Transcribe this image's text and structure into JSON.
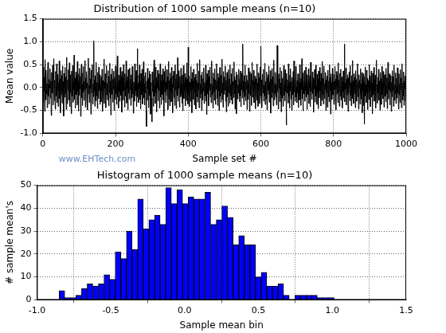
{
  "chart_data": [
    {
      "type": "line",
      "title": "Distribution of 1000 sample means (n=10)",
      "x_label": "Sample set #",
      "y_label": "Mean value",
      "annotation": "www.EHTech.com",
      "color": "#000000",
      "grid": true,
      "xlim": [
        0,
        1000
      ],
      "xticks": [
        0,
        200,
        400,
        600,
        800,
        1000
      ],
      "ylim": [
        -1,
        1.5
      ],
      "yticks": [
        {
          "value": -1,
          "label": "-1.0"
        },
        {
          "value": -0.5,
          "label": "-0.5"
        },
        {
          "value": 0,
          "label": "0.0"
        },
        {
          "value": 0.5,
          "label": "0.5"
        },
        {
          "value": 1,
          "label": "1.0"
        },
        {
          "value": 1.5,
          "label": "1.5"
        }
      ],
      "values": [
        0.12,
        -0.31,
        0.45,
        -0.08,
        0.22,
        -0.52,
        0.61,
        0.03,
        -0.27,
        0.38,
        -0.14,
        0.09,
        -0.44,
        0.27,
        0.55,
        -0.19,
        0.06,
        -0.36,
        0.18,
        -0.02,
        0.41,
        -0.23,
        0.14,
        -0.61,
        0.33,
        0.07,
        -0.12,
        0.49,
        -0.38,
        0.21,
        0.63,
        -0.05,
        -0.29,
        0.16,
        -0.47,
        0.35,
        0.02,
        -0.18,
        0.52,
        -0.33,
        0.08,
        0.29,
        -0.41,
        0.11,
        -0.07,
        0.58,
        -0.24,
        0.19,
        -0.55,
        0.04,
        0.37,
        -0.16,
        0.26,
        -0.34,
        0.47,
        -0.09,
        0.13,
        -0.62,
        0.31,
        0.05,
        -0.21,
        0.44,
        -0.13,
        0.23,
        -0.48,
        0.66,
        0.01,
        -0.35,
        0.17,
        -0.06,
        0.39,
        -0.27,
        0.09,
        0.54,
        -0.42,
        0.15,
        -0.11,
        0.28,
        -0.57,
        0.36,
        0.03,
        -0.19,
        0.48,
        -0.32,
        0.12,
        -0.04,
        0.71,
        -0.26,
        0.2,
        -0.45,
        0.06,
        0.34,
        -0.15,
        0.25,
        -0.38,
        0.57,
        -0.08,
        0.14,
        -0.51,
        0.3,
        -0.17,
        0.42,
        -0.03,
        0.24,
        -0.63,
        0.18,
        0.51,
        -0.22,
        0.07,
        -0.39,
        0.32,
        -0.1,
        0.46,
        -0.28,
        0.13,
        -0.05,
        0.59,
        -0.43,
        0.21,
        0.0,
        0.35,
        -0.25,
        0.1,
        -0.49,
        0.27,
        0.64,
        -0.14,
        0.05,
        -0.33,
        0.43,
        -0.02,
        0.19,
        -0.58,
        0.38,
        -0.12,
        0.22,
        0.5,
        -0.36,
        0.08,
        -0.2,
        1.02,
        -0.09,
        0.16,
        -0.41,
        0.26,
        0.03,
        -0.29,
        0.55,
        -0.18,
        0.11,
        -0.46,
        0.33,
        0.07,
        -0.24,
        0.45,
        -0.06,
        0.19,
        -0.37,
        0.28,
        0.02,
        -0.31,
        0.23,
        -0.07,
        0.4,
        -0.52,
        0.15,
        0.06,
        -0.2,
        0.62,
        -0.35,
        0.12,
        -0.01,
        0.3,
        -0.44,
        0.2,
        0.48,
        -0.16,
        0.09,
        -0.27,
        0.37,
        0.04,
        -0.4,
        0.25,
        -0.11,
        0.53,
        -0.23,
        0.14,
        -0.6,
        0.29,
        0.08,
        -0.15,
        0.41,
        -0.32,
        0.18,
        -0.04,
        0.36,
        -0.5,
        0.22,
        0.1,
        -0.26,
        0.47,
        -0.13,
        0.05,
        -0.37,
        0.32,
        0.69,
        -0.21,
        0.13,
        -0.45,
        0.27,
        -0.08,
        0.17,
        -0.3,
        0.44,
        0.01,
        -0.17,
        0.26,
        -0.54,
        0.35,
        -0.1,
        0.2,
        -0.28,
        0.5,
        -0.06,
        0.11,
        -0.43,
        0.3,
        0.04,
        -0.19,
        0.58,
        -0.34,
        0.15,
        -0.02,
        0.24,
        -0.49,
        0.39,
        -0.12,
        0.07,
        -0.25,
        0.43,
        -0.05,
        0.18,
        -0.39,
        0.28,
        0.09,
        -0.22,
        0.46,
        -0.14,
        0.34,
        -0.56,
        0.12,
        0.02,
        -0.3,
        0.52,
        -0.18,
        0.21,
        -0.07,
        0.37,
        -0.42,
        0.16,
        0.85,
        -0.2,
        0.1,
        -0.33,
        0.27,
        -0.04,
        0.49,
        -0.26,
        0.13,
        -0.47,
        0.31,
        0.06,
        -0.16,
        0.4,
        -0.36,
        0.19,
        -0.09,
        0.56,
        -0.23,
        0.08,
        -0.38,
        0.25,
        -0.12,
        0.33,
        -0.5,
        -0.85,
        0.14,
        -0.28,
        0.42,
        -0.03,
        0.2,
        -0.44,
        0.07,
        0.36,
        -0.17,
        0.29,
        -0.58,
        0.11,
        0.03,
        -0.24,
        -0.75,
        0.34,
        -0.08,
        0.16,
        -0.41,
        0.26,
        0.6,
        -0.19,
        0.05,
        -0.35,
        0.45,
        -0.11,
        0.22,
        -0.53,
        0.13,
        -0.01,
        0.38,
        -0.29,
        0.18,
        -0.06,
        0.3,
        -0.45,
        0.09,
        0.52,
        -0.21,
        0.14,
        -0.37,
        0.28,
        0.0,
        -0.15,
        0.41,
        -0.27,
        0.17,
        -0.62,
        0.35,
        0.06,
        -0.1,
        0.47,
        -0.33,
        0.12,
        -0.18,
        0.39,
        -0.04,
        0.23,
        -0.48,
        0.1,
        0.57,
        -0.25,
        0.15,
        -0.4,
        0.32,
        -0.09,
        0.2,
        -0.31,
        0.44,
        -0.13,
        0.07,
        -0.55,
        0.26,
        0.01,
        0.36,
        -0.22,
        0.13,
        -0.39,
        0.5,
        -0.06,
        0.19,
        -0.46,
        0.29,
        0.04,
        -0.17,
        0.65,
        -0.3,
        0.11,
        -0.02,
        0.37,
        -0.43,
        0.24,
        0.08,
        -0.2,
        0.42,
        -0.14,
        0.06,
        -0.34,
        0.27,
        -0.51,
        0.16,
        0.48,
        -0.24,
        0.1,
        -0.07,
        0.31,
        -0.4,
        0.21,
        0.03,
        -0.28,
        0.54,
        -0.12,
        0.18,
        -0.36,
        0.88,
        -0.16,
        0.25,
        -0.42,
        0.12,
        0.04,
        -0.3,
        0.46,
        -0.09,
        0.19,
        -0.55,
        0.33,
        -0.03,
        0.14,
        -0.26,
        0.4,
        0.07,
        -0.38,
        0.22,
        -0.11,
        0.29,
        -0.47,
        0.15,
        0.02,
        -0.2,
        0.53,
        -0.32,
        0.1,
        -0.05,
        0.36,
        -0.44,
        0.18,
        0.61,
        -0.23,
        0.08,
        -0.13,
        0.27,
        -0.5,
        0.34,
        -0.01,
        -0.27,
        0.2,
        -0.08,
        0.43,
        -0.35,
        0.11,
        0.05,
        -0.18,
        0.49,
        -0.29,
        0.16,
        -0.59,
        0.3,
        0.03,
        -0.14,
        0.38,
        -0.4,
        0.24,
        -0.06,
        0.13,
        0.45,
        -0.21,
        0.09,
        -0.33,
        0.26,
        0.58,
        -0.16,
        0.06,
        -0.45,
        0.32,
        -0.1,
        0.2,
        -0.28,
        0.41,
        0.0,
        -0.37,
        0.17,
        -0.04,
        0.52,
        -0.24,
        0.14,
        -0.39,
        0.31,
        -0.07,
        0.22,
        -0.5,
        0.12,
        0.44,
        -0.19,
        0.05,
        -0.32,
        0.27,
        -0.12,
        0.62,
        -0.26,
        0.1,
        -0.43,
        0.35,
        0.01,
        -0.15,
        0.23,
        -0.06,
        0.47,
        -0.3,
        0.15,
        -0.53,
        0.08,
        0.33,
        -0.2,
        0.02,
        -0.41,
        0.39,
        -0.11,
        0.19,
        -0.34,
        0.5,
        -0.17,
        0.07,
        -0.27,
        0.3,
        -0.09,
        0.42,
        -0.36,
        0.13,
        0.04,
        -0.22,
        0.56,
        -0.14,
        0.24,
        -0.47,
        0.17,
        -0.03,
        0.34,
        -0.57,
        0.11,
        0.28,
        -0.25,
        0.06,
        -0.12,
        0.4,
        0.18,
        -0.31,
        0.09,
        -0.18,
        0.36,
        -0.42,
        0.21,
        -0.05,
        0.31,
        -0.23,
        0.95,
        -0.1,
        0.14,
        -0.38,
        0.26,
        0.03,
        -0.2,
        0.49,
        -0.29,
        0.12,
        -0.04,
        0.27,
        -0.48,
        0.16,
        0.07,
        -0.26,
        0.43,
        -0.13,
        0.2,
        -0.52,
        0.35,
        0.01,
        -0.17,
        0.3,
        -0.39,
        0.09,
        0.55,
        -0.21,
        0.15,
        -0.08,
        0.38,
        -0.33,
        0.12,
        -0.02,
        0.25,
        -0.46,
        0.19,
        0.06,
        -0.15,
        0.51,
        -0.28,
        0.1,
        -0.41,
        0.32,
        -0.07,
        0.22,
        -0.35,
        0.14,
        0.45,
        -0.19,
        0.9,
        -0.24,
        0.17,
        -0.44,
        0.08,
        0.29,
        -0.12,
        0.4,
        -0.3,
        0.05,
        -0.18,
        0.53,
        -0.37,
        0.13,
        0.02,
        -0.25,
        0.34,
        -0.49,
        0.21,
        -0.06,
        0.28,
        -0.15,
        0.47,
        -0.32,
        0.11,
        -0.05,
        0.37,
        -0.56,
        0.18,
        0.04,
        -0.22,
        0.42,
        -0.11,
        0.24,
        -0.4,
        0.16,
        0.6,
        -0.27,
        0.09,
        -0.13,
        0.33,
        -0.2,
        0.07,
        -0.38,
        0.26,
        0.92,
        -0.09,
        0.15,
        -0.47,
        0.3,
        -0.02,
        0.19,
        -0.31,
        0.44,
        -0.16,
        0.1,
        -0.53,
        0.36,
        0.03,
        -0.23,
        0.2,
        -0.41,
        0.14,
        0.48,
        -0.17,
        0.06,
        -0.29,
        0.39,
        -0.08,
        0.23,
        -0.82,
        0.31,
        -0.12,
        0.17,
        0.02,
        -0.34,
        0.52,
        -0.19,
        0.11,
        -0.45,
        0.27,
        -0.07,
        0.41,
        -0.25,
        0.13,
        -0.5,
        0.22,
        0.05,
        -0.16,
        0.35,
        -0.38,
        0.58,
        -0.1,
        0.18,
        -0.3,
        0.09,
        0.46,
        -0.21,
        0.01,
        -0.33,
        0.15,
        -0.12,
        0.3,
        -0.44,
        0.24,
        0.07,
        -0.27,
        0.5,
        -0.18,
        0.11,
        -0.39,
        0.2,
        -0.04,
        0.63,
        -0.24,
        0.14,
        -0.51,
        0.32,
        0.0,
        -0.14,
        0.37,
        -0.3,
        0.1,
        -0.06,
        0.45,
        -0.2,
        0.16,
        -0.48,
        0.28,
        0.03,
        -0.15,
        0.41,
        -0.35,
        0.12,
        -0.01,
        0.26,
        -0.42,
        0.55,
        -0.09,
        0.19,
        -0.26,
        0.08,
        0.34,
        -0.13,
        0.21,
        -0.54,
        0.15,
        -0.03,
        0.39,
        -0.32,
        0.1,
        0.49,
        -0.19,
        0.04,
        -0.37,
        0.29,
        -0.11,
        0.18,
        -0.46,
        0.36,
        0.02,
        -0.22,
        0.44,
        -0.08,
        0.13,
        -0.4,
        0.31,
        0.06,
        -0.28,
        0.57,
        -0.15,
        0.2,
        -0.36,
        0.12,
        0.47,
        -0.24,
        0.09,
        -0.05,
        0.33,
        -0.5,
        0.17,
        -0.11,
        0.25,
        -0.43,
        0.08,
        0.38,
        -0.2,
        0.14,
        -0.31,
        0.5,
        -0.07,
        0.22,
        -0.58,
        0.3,
        -0.02,
        0.11,
        -0.26,
        0.42,
        -0.16,
        0.05,
        0.29,
        -0.37,
        0.13,
        -0.04,
        0.46,
        -0.23,
        0.18,
        -0.49,
        0.35,
        0.02,
        -0.14,
        0.27,
        -0.33,
        0.54,
        -0.1,
        0.16,
        -0.41,
        0.08,
        0.31,
        -0.19,
        0.4,
        -0.27,
        0.06,
        0.23,
        -0.45,
        0.12,
        -0.08,
        0.36,
        -0.22,
        0.15,
        0.95,
        -0.31,
        0.1,
        -0.03,
        0.43,
        -0.38,
        0.19,
        0.07,
        -0.16,
        0.28,
        -0.52,
        0.21,
        -0.12,
        0.34,
        0.04,
        -0.29,
        0.48,
        -0.17,
        0.11,
        -0.4,
        0.26,
        -0.06,
        0.59,
        -0.24,
        0.14,
        -0.35,
        0.3,
        0.01,
        -0.13,
        0.22,
        -0.44,
        0.37,
        -0.09,
        0.18,
        -0.3,
        0.05,
        0.52,
        -0.2,
        0.12,
        -0.47,
        0.28,
        -0.02,
        0.16,
        -0.36,
        0.41,
        -0.14,
        0.08,
        -0.25,
        0.33,
        -0.55,
        0.19,
        -0.07,
        0.3,
        -0.39,
        0.11,
        -0.8,
        0.24,
        0.45,
        -0.18,
        0.06,
        -0.33,
        0.38,
        -0.12,
        0.2,
        -0.48,
        0.15,
        0.03,
        -0.26,
        0.5,
        -0.1,
        0.25,
        -0.42,
        0.13,
        -0.05,
        0.36,
        -0.21,
        0.09,
        -0.57,
        0.31,
        0.02,
        -0.16,
        0.44,
        -0.3,
        0.17,
        -0.08,
        0.27,
        -0.45,
        0.12,
        0.6,
        -0.2,
        0.07,
        -0.34,
        0.22,
        -0.11,
        0.4,
        -0.28,
        0.14,
        0.03,
        -0.5,
        0.33,
        -0.06,
        0.19,
        -0.37,
        0.46,
        -0.15,
        0.1,
        -0.24,
        0.35,
        -0.02,
        -0.43,
        0.16,
        0.28,
        -0.19,
        0.05,
        -0.31,
        0.42,
        -0.13,
        0.21,
        -0.46,
        0.09,
        0.55,
        -0.25,
        0.12,
        -0.04,
        0.3,
        -0.38,
        0.18,
        -0.09,
        0.26,
        -0.52,
        0.11,
        -0.2,
        0.37,
        -0.07,
        0.24,
        -0.41,
        0.15,
        0.49,
        -0.28,
        0.06,
        -0.14,
        0.32,
        -0.35,
        0.2,
        0.01,
        -0.23,
        0.43,
        -0.12,
        0.17,
        -0.47,
        0.3,
        -0.16,
        0.08,
        -0.33,
        0.39,
        -0.05,
        0.21,
        -0.44,
        0.13,
        0.52,
        -0.27,
        0.1,
        -0.18,
        0.34,
        -0.39,
        0.14,
        -0.03,
        0.25,
        -0.3,
        0.06
      ]
    },
    {
      "type": "histogram",
      "title": "Histogram of 1000 sample means (n=10)",
      "x_label": "Sample mean bin",
      "y_label": "# sample mean's",
      "color": "#0000ff",
      "grid": true,
      "xlim": [
        -1,
        1.5
      ],
      "xticks": [
        {
          "value": -1,
          "label": "-1.0"
        },
        {
          "value": -0.5,
          "label": "-0.5"
        },
        {
          "value": 0,
          "label": "0.0"
        },
        {
          "value": 0.5,
          "label": "0.5"
        },
        {
          "value": 1,
          "label": "1.0"
        },
        {
          "value": 1.5,
          "label": "1.5"
        }
      ],
      "ylim": [
        0,
        50
      ],
      "yticks": [
        0,
        10,
        20,
        30,
        40,
        50
      ],
      "bins": [
        -0.85,
        -0.812,
        -0.774,
        -0.736,
        -0.698,
        -0.66,
        -0.622,
        -0.584,
        -0.546,
        -0.508,
        -0.47,
        -0.432,
        -0.394,
        -0.356,
        -0.318,
        -0.28,
        -0.242,
        -0.204,
        -0.166,
        -0.128,
        -0.09,
        -0.052,
        -0.014,
        0.024,
        0.062,
        0.1,
        0.138,
        0.176,
        0.214,
        0.252,
        0.29,
        0.328,
        0.366,
        0.404,
        0.442,
        0.48,
        0.518,
        0.556,
        0.594,
        0.632,
        0.67,
        0.708,
        0.746,
        0.784,
        0.822,
        0.86,
        0.898,
        0.936,
        0.974,
        1.012
      ],
      "values": [
        4,
        1,
        1,
        2,
        5,
        7,
        6,
        7,
        11,
        9,
        21,
        18,
        30,
        22,
        44,
        31,
        35,
        37,
        33,
        49,
        42,
        48,
        42,
        45,
        44,
        44,
        47,
        33,
        35,
        41,
        36,
        24,
        28,
        24,
        24,
        10,
        12,
        6,
        6,
        7,
        2,
        0,
        2,
        2,
        2,
        2,
        1,
        1,
        1
      ]
    }
  ]
}
